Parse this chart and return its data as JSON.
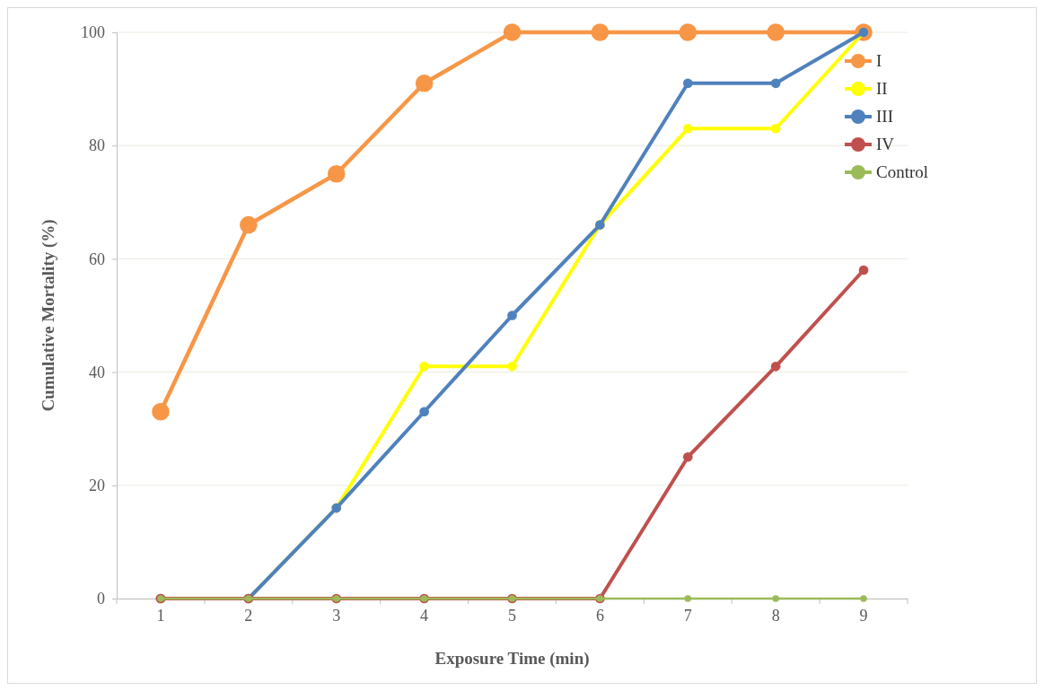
{
  "chart_data": {
    "type": "line",
    "xlabel": "Exposure Time (min)",
    "ylabel": "Cumulative Mortality (%)",
    "categories": [
      "1",
      "2",
      "3",
      "4",
      "5",
      "6",
      "7",
      "8",
      "9"
    ],
    "ylim": [
      0,
      100
    ],
    "yticks": [
      0,
      20,
      40,
      60,
      80,
      100
    ],
    "grid": "y",
    "legend": "top right",
    "marker": "circle",
    "series": [
      {
        "name": "I",
        "color": "#f79646",
        "values": [
          33,
          66,
          75,
          91,
          100,
          100,
          100,
          100,
          100
        ]
      },
      {
        "name": "II",
        "color": "#ffff00",
        "values": [
          0,
          0,
          16,
          41,
          41,
          66,
          83,
          83,
          100
        ]
      },
      {
        "name": "III",
        "color": "#4f81bd",
        "values": [
          0,
          0,
          16,
          33,
          50,
          66,
          91,
          91,
          100
        ]
      },
      {
        "name": "IV",
        "color": "#c0504d",
        "values": [
          0,
          0,
          0,
          0,
          0,
          0,
          25,
          41,
          58
        ]
      },
      {
        "name": "Control",
        "color": "#9bbb59",
        "values": [
          0,
          0,
          0,
          0,
          0,
          0,
          0,
          0,
          0
        ]
      }
    ]
  }
}
